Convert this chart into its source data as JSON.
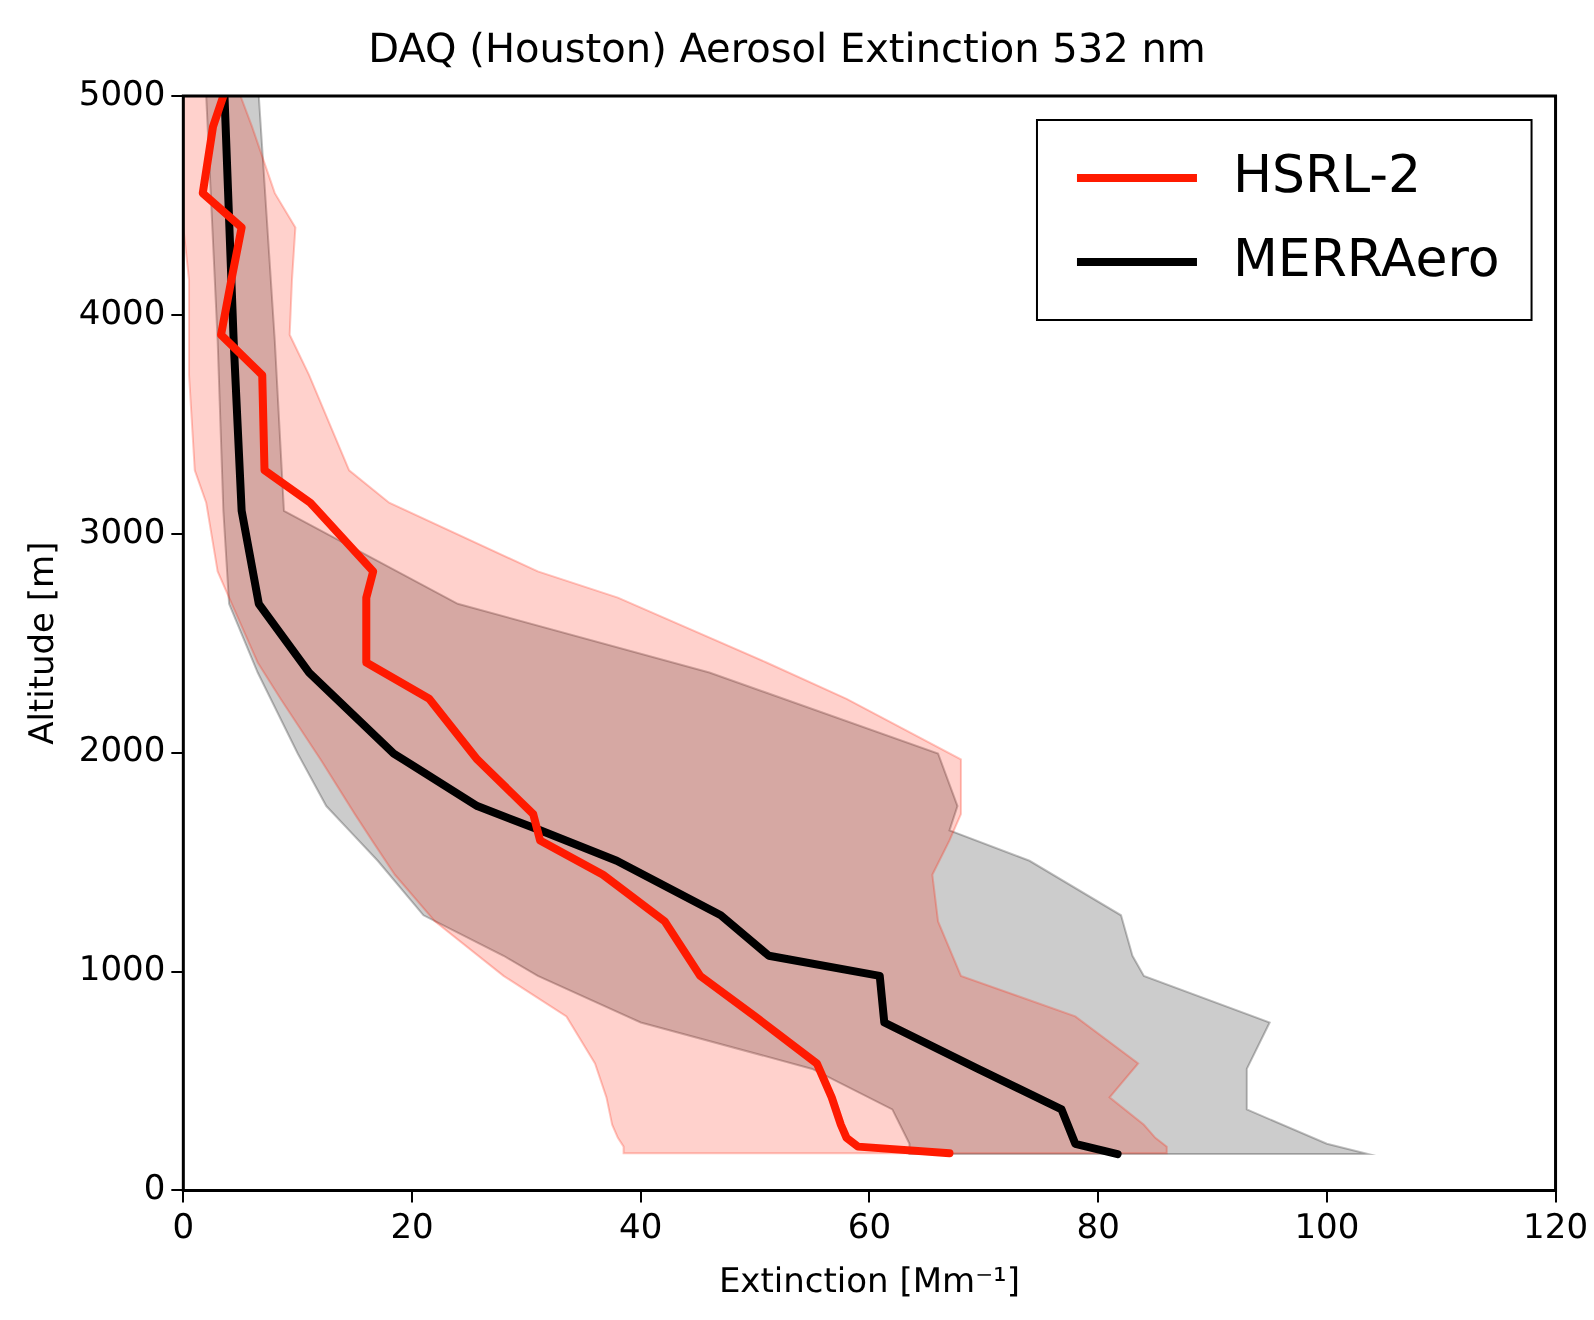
{
  "chart_data": {
    "type": "line",
    "orientation": "horizontal",
    "title": "DAQ (Houston) Aerosol Extinction 532 nm",
    "xlabel": "Extinction [Mm⁻¹]",
    "ylabel": "Altitude [m]",
    "xlim": [
      0,
      120
    ],
    "xticks": [
      0,
      20,
      40,
      60,
      80,
      100,
      120
    ],
    "ylim": [
      0,
      5000
    ],
    "yticks": [
      0,
      1000,
      2000,
      3000,
      4000,
      5000
    ],
    "grid": false,
    "legend": "top right",
    "marker": "none",
    "line_style": "solid",
    "series": [
      {
        "name": "HSRL-2",
        "color": "#ff1a00",
        "x": [
          170,
          200,
          240,
          300,
          425,
          580,
          795,
          980,
          1229,
          1442,
          1599,
          1719,
          1969,
          2246,
          2412,
          2708,
          2828,
          3142,
          3290,
          3725,
          3909,
          4159,
          4399,
          4556,
          4861,
          5000
        ],
        "values": [
          67,
          59,
          58,
          57.5,
          56.7,
          55.4,
          50,
          45.2,
          42.1,
          36.7,
          31.2,
          30.6,
          25.7,
          21.5,
          16,
          16,
          16.6,
          11.1,
          7.1,
          6.9,
          3.3,
          4.2,
          5.1,
          1.7,
          2.6,
          3.5
        ],
        "lower": [
          38.5,
          38.5,
          38,
          37.5,
          37,
          36,
          33.5,
          28,
          22,
          18.5,
          16.5,
          15,
          12,
          8.5,
          6.5,
          4,
          3,
          2,
          1,
          0.5,
          0.5,
          0.5,
          0,
          0,
          0,
          0
        ],
        "upper": [
          86,
          86,
          85,
          84,
          81,
          83.5,
          78,
          68,
          66,
          65.5,
          67,
          68,
          68,
          58,
          51,
          38,
          31,
          18,
          14.5,
          11,
          9.3,
          9.5,
          9.8,
          8,
          6,
          5
        ]
      },
      {
        "name": "MERRAero",
        "color": "#000000",
        "x": [
          166,
          213,
          370,
          555,
          767,
          980,
          1072,
          1257,
          1506,
          1645,
          1756,
          1996,
          2366,
          2680,
          3105,
          3882,
          5000
        ],
        "values": [
          81.7,
          78,
          76.8,
          69.5,
          61.3,
          60.9,
          51.2,
          47,
          37.9,
          31.2,
          25.7,
          18.4,
          11,
          6.6,
          5.1,
          4.4,
          3.6
        ],
        "lower": [
          63.5,
          63.5,
          62,
          55,
          40,
          31,
          28,
          21,
          17,
          14.5,
          12.5,
          10,
          6.5,
          4,
          3.5,
          3,
          2
        ],
        "upper": [
          103.6,
          100,
          93,
          93,
          95,
          84,
          83,
          82,
          74,
          67,
          67.7,
          66,
          46,
          24,
          8.8,
          8,
          6.6
        ]
      }
    ]
  }
}
